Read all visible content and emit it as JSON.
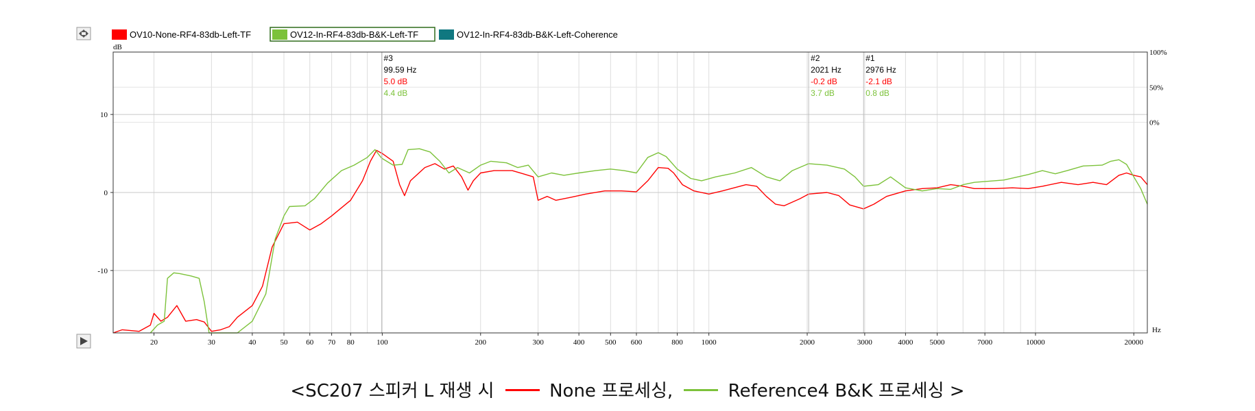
{
  "legend": {
    "items": [
      {
        "label": "OV10-None-RF4-83db-Left-TF",
        "color": "#ff0000"
      },
      {
        "label": "OV12-In-RF4-83db-B&K-Left-TF",
        "color": "#7cc23a"
      },
      {
        "label": "OV12-In-RF4-83db-B&K-Left-Coherence",
        "color": "#107880"
      }
    ]
  },
  "chart_data": {
    "type": "line",
    "xscale": "log",
    "xlim": [
      15,
      22000
    ],
    "ylim": [
      -18,
      18
    ],
    "ylabel": "dB",
    "xunit": "Hz",
    "x_ticks": [
      {
        "value": 20,
        "label": "20"
      },
      {
        "value": 30,
        "label": "30"
      },
      {
        "value": 40,
        "label": "40"
      },
      {
        "value": 50,
        "label": "50"
      },
      {
        "value": 60,
        "label": "60"
      },
      {
        "value": 70,
        "label": "70"
      },
      {
        "value": 80,
        "label": "80"
      },
      {
        "value": 100,
        "label": "100"
      },
      {
        "value": 200,
        "label": "200"
      },
      {
        "value": 300,
        "label": "300"
      },
      {
        "value": 400,
        "label": "400"
      },
      {
        "value": 500,
        "label": "500"
      },
      {
        "value": 600,
        "label": "600"
      },
      {
        "value": 800,
        "label": "800"
      },
      {
        "value": 1000,
        "label": "1000"
      },
      {
        "value": 2000,
        "label": "2000"
      },
      {
        "value": 3000,
        "label": "3000"
      },
      {
        "value": 4000,
        "label": "4000"
      },
      {
        "value": 5000,
        "label": "5000"
      },
      {
        "value": 7000,
        "label": "7000"
      },
      {
        "value": 10000,
        "label": "10000"
      },
      {
        "value": 20000,
        "label": "20000"
      }
    ],
    "y_ticks": [
      {
        "value": 10,
        "label": "10"
      },
      {
        "value": 0,
        "label": "0"
      },
      {
        "value": -10,
        "label": "-10"
      }
    ],
    "right_ticks": [
      {
        "value": 18,
        "label": "100%"
      },
      {
        "value": 13.5,
        "label": "50%"
      },
      {
        "value": 9,
        "label": "0%"
      }
    ],
    "markers": [
      {
        "id": "#3",
        "freq": 99.59,
        "freq_label": "99.59 Hz",
        "red": "5.0 dB",
        "green": "4.4 dB"
      },
      {
        "id": "#2",
        "freq": 2021,
        "freq_label": "2021 Hz",
        "red": "-0.2 dB",
        "green": "3.7 dB"
      },
      {
        "id": "#1",
        "freq": 2976,
        "freq_label": "2976 Hz",
        "red": "-2.1 dB",
        "green": "0.8 dB"
      }
    ],
    "series": [
      {
        "name": "OV10-None-RF4-83db-Left-TF",
        "color": "#ff0000",
        "points": [
          [
            15,
            -18
          ],
          [
            16,
            -17.6
          ],
          [
            18,
            -17.8
          ],
          [
            19.5,
            -17
          ],
          [
            20,
            -15.5
          ],
          [
            21,
            -16.5
          ],
          [
            22,
            -16
          ],
          [
            23.5,
            -14.5
          ],
          [
            25,
            -16.5
          ],
          [
            27,
            -16.3
          ],
          [
            28.5,
            -16.6
          ],
          [
            30,
            -17.8
          ],
          [
            32,
            -17.6
          ],
          [
            34,
            -17.2
          ],
          [
            36,
            -16
          ],
          [
            40,
            -14.5
          ],
          [
            43,
            -12
          ],
          [
            46,
            -7
          ],
          [
            50,
            -4
          ],
          [
            55,
            -3.8
          ],
          [
            60,
            -4.8
          ],
          [
            65,
            -4
          ],
          [
            70,
            -3
          ],
          [
            80,
            -1
          ],
          [
            87,
            1.5
          ],
          [
            92,
            4
          ],
          [
            96,
            5.4
          ],
          [
            100,
            5.0
          ],
          [
            108,
            4
          ],
          [
            113,
            1
          ],
          [
            117,
            -0.4
          ],
          [
            122,
            1.5
          ],
          [
            135,
            3.2
          ],
          [
            145,
            3.7
          ],
          [
            155,
            3
          ],
          [
            165,
            3.4
          ],
          [
            175,
            2
          ],
          [
            183,
            0.3
          ],
          [
            190,
            1.5
          ],
          [
            200,
            2.5
          ],
          [
            220,
            2.8
          ],
          [
            250,
            2.8
          ],
          [
            270,
            2.4
          ],
          [
            290,
            2
          ],
          [
            300,
            -1
          ],
          [
            320,
            -0.5
          ],
          [
            340,
            -1
          ],
          [
            380,
            -0.6
          ],
          [
            420,
            -0.2
          ],
          [
            480,
            0.2
          ],
          [
            540,
            0.2
          ],
          [
            600,
            0.1
          ],
          [
            650,
            1.5
          ],
          [
            700,
            3.2
          ],
          [
            750,
            3.1
          ],
          [
            780,
            2.5
          ],
          [
            830,
            1
          ],
          [
            900,
            0.2
          ],
          [
            1000,
            -0.2
          ],
          [
            1100,
            0.2
          ],
          [
            1300,
            1
          ],
          [
            1400,
            0.8
          ],
          [
            1500,
            -0.5
          ],
          [
            1600,
            -1.5
          ],
          [
            1700,
            -1.7
          ],
          [
            1900,
            -0.8
          ],
          [
            2021,
            -0.2
          ],
          [
            2300,
            0
          ],
          [
            2500,
            -0.4
          ],
          [
            2700,
            -1.6
          ],
          [
            2976,
            -2.1
          ],
          [
            3200,
            -1.5
          ],
          [
            3500,
            -0.5
          ],
          [
            4000,
            0.2
          ],
          [
            4500,
            0.5
          ],
          [
            5000,
            0.6
          ],
          [
            5500,
            1
          ],
          [
            6000,
            0.8
          ],
          [
            6500,
            0.5
          ],
          [
            7500,
            0.5
          ],
          [
            8500,
            0.6
          ],
          [
            9500,
            0.5
          ],
          [
            10500,
            0.8
          ],
          [
            12000,
            1.3
          ],
          [
            13500,
            1.0
          ],
          [
            15000,
            1.3
          ],
          [
            16500,
            1.0
          ],
          [
            18000,
            2.2
          ],
          [
            19000,
            2.5
          ],
          [
            20000,
            2.2
          ],
          [
            21000,
            2.0
          ],
          [
            22000,
            1.0
          ]
        ]
      },
      {
        "name": "OV12-In-RF4-83db-B&K-Left-TF",
        "color": "#7cc23a",
        "points": [
          [
            19.5,
            -18
          ],
          [
            20.5,
            -17
          ],
          [
            21.5,
            -16.5
          ],
          [
            22,
            -11
          ],
          [
            23,
            -10.3
          ],
          [
            24,
            -10.4
          ],
          [
            26,
            -10.7
          ],
          [
            27.5,
            -11
          ],
          [
            28.5,
            -14
          ],
          [
            29.5,
            -18
          ],
          [
            36,
            -18
          ],
          [
            40,
            -16.5
          ],
          [
            44,
            -13
          ],
          [
            47,
            -6
          ],
          [
            50,
            -3
          ],
          [
            52,
            -1.8
          ],
          [
            58,
            -1.7
          ],
          [
            62,
            -0.8
          ],
          [
            68,
            1.2
          ],
          [
            75,
            2.8
          ],
          [
            82,
            3.5
          ],
          [
            90,
            4.5
          ],
          [
            95,
            5.5
          ],
          [
            99.59,
            4.4
          ],
          [
            108,
            3.5
          ],
          [
            115,
            3.6
          ],
          [
            120,
            5.5
          ],
          [
            130,
            5.6
          ],
          [
            140,
            5.2
          ],
          [
            150,
            4
          ],
          [
            160,
            2.5
          ],
          [
            170,
            3.2
          ],
          [
            185,
            2.5
          ],
          [
            200,
            3.5
          ],
          [
            215,
            4
          ],
          [
            240,
            3.8
          ],
          [
            260,
            3.2
          ],
          [
            280,
            3.5
          ],
          [
            300,
            2
          ],
          [
            330,
            2.5
          ],
          [
            360,
            2.2
          ],
          [
            400,
            2.5
          ],
          [
            450,
            2.8
          ],
          [
            500,
            3
          ],
          [
            550,
            2.8
          ],
          [
            600,
            2.5
          ],
          [
            650,
            4.5
          ],
          [
            700,
            5.1
          ],
          [
            740,
            4.6
          ],
          [
            800,
            3
          ],
          [
            880,
            1.8
          ],
          [
            950,
            1.5
          ],
          [
            1050,
            2.0
          ],
          [
            1200,
            2.5
          ],
          [
            1350,
            3.2
          ],
          [
            1500,
            2
          ],
          [
            1650,
            1.5
          ],
          [
            1800,
            2.8
          ],
          [
            2021,
            3.7
          ],
          [
            2300,
            3.5
          ],
          [
            2600,
            3.0
          ],
          [
            2800,
            2
          ],
          [
            2976,
            0.8
          ],
          [
            3300,
            1
          ],
          [
            3600,
            2
          ],
          [
            4000,
            0.6
          ],
          [
            4500,
            0.2
          ],
          [
            5000,
            0.5
          ],
          [
            5500,
            0.4
          ],
          [
            6000,
            1
          ],
          [
            6500,
            1.3
          ],
          [
            8000,
            1.6
          ],
          [
            9500,
            2.3
          ],
          [
            10500,
            2.8
          ],
          [
            11500,
            2.4
          ],
          [
            12500,
            2.8
          ],
          [
            14000,
            3.4
          ],
          [
            16000,
            3.5
          ],
          [
            17000,
            4.0
          ],
          [
            18000,
            4.2
          ],
          [
            19000,
            3.6
          ],
          [
            20000,
            2.0
          ],
          [
            21000,
            0.5
          ],
          [
            22000,
            -1.5
          ]
        ]
      }
    ]
  },
  "caption": {
    "open": "<SC207 스피커 L 재생 시",
    "none_label": "None 프로세싱,",
    "ref_label": "Reference4 B&K  프로세싱 >",
    "red_color": "#ff0000",
    "green_color": "#7cc23a"
  }
}
